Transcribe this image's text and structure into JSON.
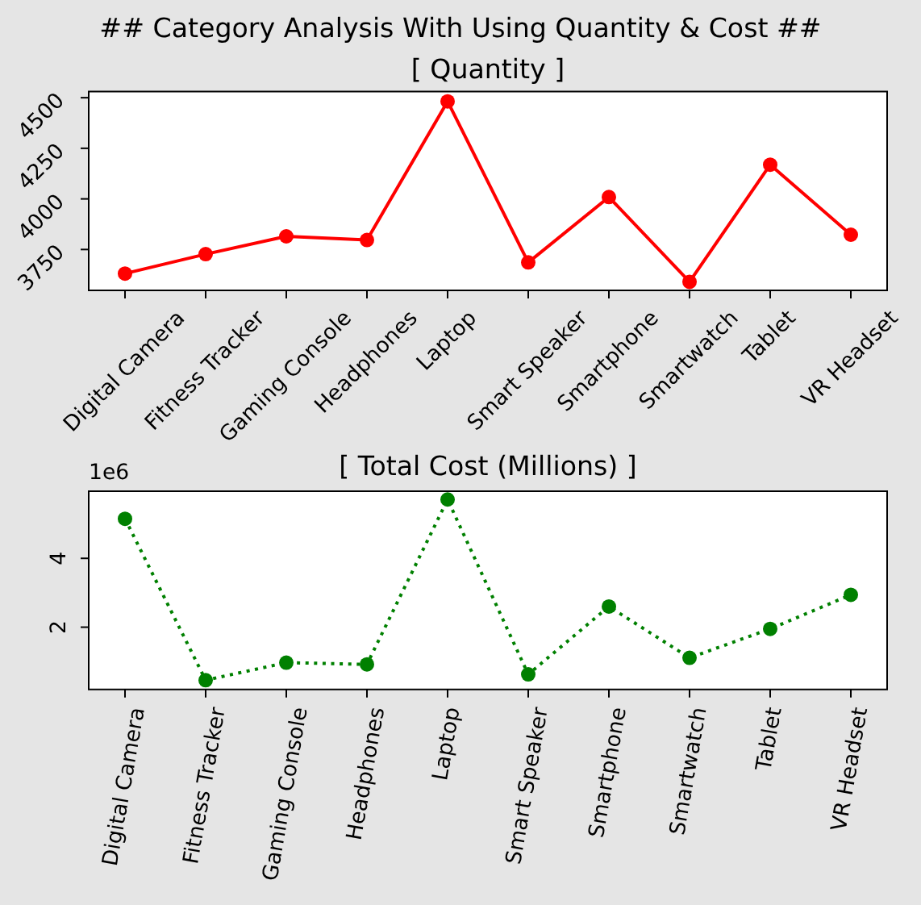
{
  "chart_data": [
    {
      "type": "other",
      "title": "## Category Analysis With Using Quantity & Cost ##"
    },
    {
      "type": "line",
      "title": "[ Quantity ]",
      "categories": [
        "Digital Camera",
        "Fitness Tracker",
        "Gaming Console",
        "Headphones",
        "Laptop",
        "Smart Speaker",
        "Smartphone",
        "Smartwatch",
        "Tablet",
        "VR Headset"
      ],
      "values": [
        3631,
        3727,
        3815,
        3797,
        4482,
        3686,
        4009,
        3590,
        4169,
        3823
      ],
      "color": "#ff0000",
      "marker": "circle",
      "line_style": "solid",
      "ylim": [
        3548,
        4530
      ],
      "yticks": [
        3750,
        4000,
        4250,
        4500
      ]
    },
    {
      "type": "line",
      "title": "[ Total Cost (Millions) ]",
      "categories": [
        "Digital Camera",
        "Fitness Tracker",
        "Gaming Console",
        "Headphones",
        "Laptop",
        "Smart Speaker",
        "Smartphone",
        "Smartwatch",
        "Tablet",
        "VR Headset"
      ],
      "values": [
        5.15,
        0.46,
        0.97,
        0.92,
        5.71,
        0.63,
        2.6,
        1.11,
        1.95,
        2.94
      ],
      "color": "#008000",
      "marker": "circle",
      "line_style": "dotted",
      "ylim": [
        0.19,
        5.95
      ],
      "yticks": [
        2,
        4
      ],
      "annotations": [
        "1e6"
      ]
    }
  ]
}
